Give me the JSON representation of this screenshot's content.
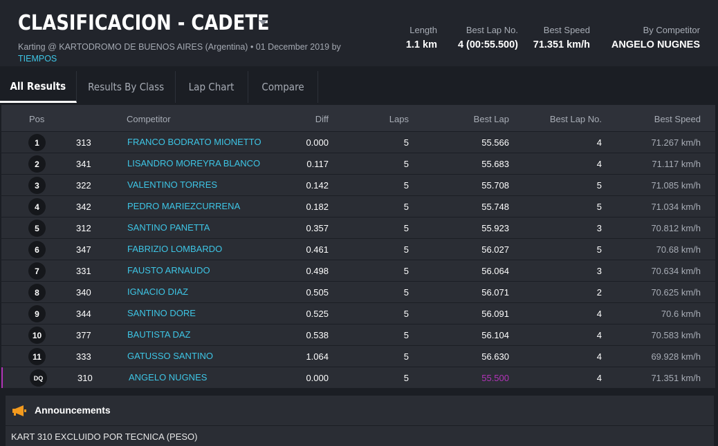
{
  "header": {
    "title": "CLASIFICACION - CADETE",
    "subtitle": "Karting @ KARTODROMO DE BUENOS AIRES (Argentina) • 01 December 2019 by",
    "subtitle_link": "TIEMPOS",
    "stats": [
      {
        "label": "Length",
        "value": "1.1 km"
      },
      {
        "label": "Best Lap No.",
        "value": "4 (00:55.500)"
      },
      {
        "label": "Best Speed",
        "value": "71.351 km/h"
      },
      {
        "label": "By Competitor",
        "value": "ANGELO NUGNES"
      }
    ]
  },
  "tabs": [
    {
      "label": "All Results",
      "active": true
    },
    {
      "label": "Results By Class",
      "active": false
    },
    {
      "label": "Lap Chart",
      "active": false
    },
    {
      "label": "Compare",
      "active": false
    }
  ],
  "columns": {
    "pos": "Pos",
    "competitor": "Competitor",
    "diff": "Diff",
    "laps": "Laps",
    "best_lap": "Best Lap",
    "best_lap_no": "Best Lap No.",
    "best_speed": "Best Speed"
  },
  "results": [
    {
      "pos": "1",
      "num": "313",
      "name": "FRANCO BODRATO MIONETTO",
      "diff": "0.000",
      "laps": "5",
      "best_lap": "55.566",
      "best_lap_no": "4",
      "best_speed": "71.267 km/h"
    },
    {
      "pos": "2",
      "num": "341",
      "name": "LISANDRO MOREYRA BLANCO",
      "diff": "0.117",
      "laps": "5",
      "best_lap": "55.683",
      "best_lap_no": "4",
      "best_speed": "71.117 km/h"
    },
    {
      "pos": "3",
      "num": "322",
      "name": "VALENTINO TORRES",
      "diff": "0.142",
      "laps": "5",
      "best_lap": "55.708",
      "best_lap_no": "5",
      "best_speed": "71.085 km/h"
    },
    {
      "pos": "4",
      "num": "342",
      "name": "PEDRO MARIEZCURRENA",
      "diff": "0.182",
      "laps": "5",
      "best_lap": "55.748",
      "best_lap_no": "5",
      "best_speed": "71.034 km/h"
    },
    {
      "pos": "5",
      "num": "312",
      "name": "SANTINO PANETTA",
      "diff": "0.357",
      "laps": "5",
      "best_lap": "55.923",
      "best_lap_no": "3",
      "best_speed": "70.812 km/h"
    },
    {
      "pos": "6",
      "num": "347",
      "name": "FABRIZIO LOMBARDO",
      "diff": "0.461",
      "laps": "5",
      "best_lap": "56.027",
      "best_lap_no": "5",
      "best_speed": "70.68 km/h"
    },
    {
      "pos": "7",
      "num": "331",
      "name": "FAUSTO ARNAUDO",
      "diff": "0.498",
      "laps": "5",
      "best_lap": "56.064",
      "best_lap_no": "3",
      "best_speed": "70.634 km/h"
    },
    {
      "pos": "8",
      "num": "340",
      "name": "IGNACIO DIAZ",
      "diff": "0.505",
      "laps": "5",
      "best_lap": "56.071",
      "best_lap_no": "2",
      "best_speed": "70.625 km/h"
    },
    {
      "pos": "9",
      "num": "344",
      "name": "SANTINO DORE",
      "diff": "0.525",
      "laps": "5",
      "best_lap": "56.091",
      "best_lap_no": "4",
      "best_speed": "70.6 km/h"
    },
    {
      "pos": "10",
      "num": "377",
      "name": "BAUTISTA DAZ",
      "diff": "0.538",
      "laps": "5",
      "best_lap": "56.104",
      "best_lap_no": "4",
      "best_speed": "70.583 km/h"
    },
    {
      "pos": "11",
      "num": "333",
      "name": "GATUSSO SANTINO",
      "diff": "1.064",
      "laps": "5",
      "best_lap": "56.630",
      "best_lap_no": "4",
      "best_speed": "69.928 km/h"
    },
    {
      "pos": "DQ",
      "num": "310",
      "name": "ANGELO NUGNES",
      "diff": "0.000",
      "laps": "5",
      "best_lap": "55.500",
      "best_lap_no": "4",
      "best_speed": "71.351 km/h",
      "dq": true
    }
  ],
  "announcements": {
    "title": "Announcements",
    "icon": "megaphone-icon",
    "text": "KART 310 EXCLUIDO POR TECNICA (PESO)"
  },
  "colors": {
    "accent_link": "#3ec6e6",
    "best_lap_highlight": "#b234b8",
    "megaphone": "#f39a1e"
  }
}
